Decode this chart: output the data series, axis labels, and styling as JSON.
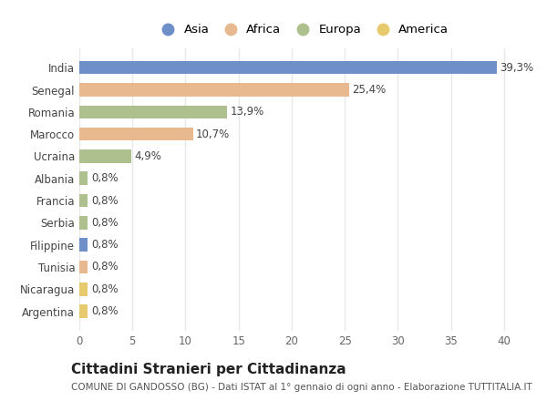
{
  "categories": [
    "India",
    "Senegal",
    "Romania",
    "Marocco",
    "Ucraina",
    "Albania",
    "Francia",
    "Serbia",
    "Filippine",
    "Tunisia",
    "Nicaragua",
    "Argentina"
  ],
  "values": [
    39.3,
    25.4,
    13.9,
    10.7,
    4.9,
    0.8,
    0.8,
    0.8,
    0.8,
    0.8,
    0.8,
    0.8
  ],
  "labels": [
    "39,3%",
    "25,4%",
    "13,9%",
    "10,7%",
    "4,9%",
    "0,8%",
    "0,8%",
    "0,8%",
    "0,8%",
    "0,8%",
    "0,8%",
    "0,8%"
  ],
  "colors": [
    "#6f8fc9",
    "#e8b98e",
    "#adc08e",
    "#e8b98e",
    "#adc08e",
    "#adc08e",
    "#adc08e",
    "#adc08e",
    "#6f8fc9",
    "#e8b98e",
    "#e8ca6e",
    "#e8ca6e"
  ],
  "legend_labels": [
    "Asia",
    "Africa",
    "Europa",
    "America"
  ],
  "legend_colors": [
    "#6f8fc9",
    "#e8b98e",
    "#adc08e",
    "#e8ca6e"
  ],
  "title": "Cittadini Stranieri per Cittadinanza",
  "subtitle": "COMUNE DI GANDOSSO (BG) - Dati ISTAT al 1° gennaio di ogni anno - Elaborazione TUTTITALIA.IT",
  "xlim": [
    0,
    42
  ],
  "xticks": [
    0,
    5,
    10,
    15,
    20,
    25,
    30,
    35,
    40
  ],
  "background_color": "#ffffff",
  "grid_color": "#e8e8e8",
  "bar_height": 0.6,
  "title_fontsize": 11,
  "subtitle_fontsize": 7.5,
  "label_fontsize": 8.5,
  "tick_fontsize": 8.5,
  "legend_fontsize": 9.5
}
